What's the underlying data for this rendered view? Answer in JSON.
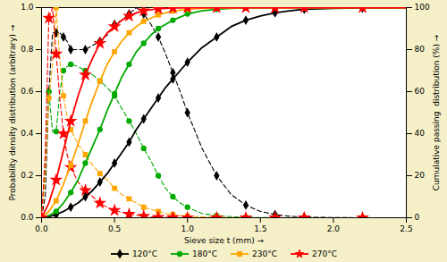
{
  "chart_data": {
    "type": "line",
    "xlabel": "Sieve size t (mm)",
    "ylabel": "Probability density distribution (arbitrary)",
    "y2label": "Cumulative passing  distribution (%)",
    "xlim": [
      0,
      2.5
    ],
    "xticks": [
      {
        "value": 0,
        "label": "0.0"
      },
      0.5,
      {
        "value": 1,
        "label": "1.0"
      },
      1.5,
      {
        "value": 2,
        "label": "2.0"
      },
      2.5
    ],
    "ylim": [
      0,
      1.0
    ],
    "yticks": [
      {
        "value": 0,
        "label": "0.0"
      },
      0.2,
      0.4,
      0.6,
      0.8,
      {
        "value": 1,
        "label": "1.0"
      }
    ],
    "y2lim": [
      0,
      100
    ],
    "y2ticks": [
      0,
      20,
      40,
      60,
      80,
      100
    ],
    "grid": false,
    "legend": "bottom",
    "series": [
      {
        "color": "black",
        "marker": "diamond",
        "line_style": "dashed",
        "x": [
          0.0,
          0.025,
          0.05,
          0.075,
          0.1,
          0.125,
          0.15,
          0.175,
          0.2,
          0.25,
          0.3,
          0.35,
          0.4,
          0.45,
          0.5,
          0.55,
          0.6,
          0.65,
          0.7,
          0.75,
          0.8,
          0.85,
          0.9,
          0.95,
          1.0,
          1.1,
          1.2,
          1.3,
          1.4,
          1.5,
          1.6,
          1.7,
          1.8,
          2.0,
          2.2,
          2.5
        ],
        "values": [
          0,
          0.1,
          0.6,
          0.88,
          0.88,
          0.88,
          0.86,
          0.84,
          0.8,
          0.8,
          0.8,
          0.82,
          0.84,
          0.87,
          0.92,
          0.94,
          0.97,
          1.0,
          0.97,
          0.92,
          0.86,
          0.78,
          0.69,
          0.6,
          0.5,
          0.33,
          0.2,
          0.11,
          0.06,
          0.03,
          0.015,
          0.007,
          0.003,
          0.001,
          0.0,
          0.0
        ]
      },
      {
        "color": "#00aa00",
        "marker": "circle",
        "line_style": "dashed",
        "x": [
          0.0,
          0.025,
          0.05,
          0.075,
          0.1,
          0.125,
          0.15,
          0.175,
          0.2,
          0.25,
          0.3,
          0.35,
          0.4,
          0.45,
          0.5,
          0.55,
          0.6,
          0.65,
          0.7,
          0.75,
          0.8,
          0.85,
          0.9,
          0.95,
          1.0,
          1.1,
          1.2,
          1.3,
          1.4,
          1.5,
          1.6,
          1.7,
          1.8,
          2.0,
          2.2,
          2.5
        ],
        "values": [
          0,
          0.25,
          0.6,
          0.41,
          0.41,
          0.6,
          0.7,
          0.72,
          0.73,
          0.72,
          0.7,
          0.68,
          0.65,
          0.62,
          0.58,
          0.52,
          0.46,
          0.4,
          0.33,
          0.27,
          0.2,
          0.14,
          0.1,
          0.07,
          0.05,
          0.02,
          0.01,
          0.005,
          0.002,
          0.001,
          0.0,
          0.0,
          0.0,
          0.0,
          0.0,
          0.0
        ]
      },
      {
        "color": "orange",
        "marker": "square",
        "line_style": "dashed",
        "x": [
          0.0,
          0.025,
          0.05,
          0.075,
          0.1,
          0.125,
          0.15,
          0.175,
          0.2,
          0.25,
          0.3,
          0.35,
          0.4,
          0.45,
          0.5,
          0.55,
          0.6,
          0.65,
          0.7,
          0.75,
          0.8,
          0.85,
          0.9,
          0.95,
          1.0,
          1.1,
          1.2,
          1.3,
          1.4,
          1.5,
          1.6,
          1.7,
          1.8,
          2.0,
          2.2,
          2.5
        ],
        "values": [
          0,
          0.2,
          0.57,
          0.73,
          1.0,
          0.75,
          0.58,
          0.48,
          0.42,
          0.35,
          0.3,
          0.25,
          0.21,
          0.18,
          0.14,
          0.11,
          0.09,
          0.07,
          0.05,
          0.04,
          0.03,
          0.02,
          0.015,
          0.01,
          0.008,
          0.004,
          0.002,
          0.001,
          0.0,
          0.0,
          0.0,
          0.0,
          0.0,
          0.0,
          0.0,
          0.0
        ]
      },
      {
        "color": "red",
        "marker": "star",
        "line_style": "dashed",
        "x": [
          0.0,
          0.025,
          0.05,
          0.075,
          0.1,
          0.125,
          0.15,
          0.175,
          0.2,
          0.25,
          0.3,
          0.35,
          0.4,
          0.45,
          0.5,
          0.55,
          0.6,
          0.65,
          0.7,
          0.75,
          0.8,
          0.85,
          0.9,
          0.95,
          1.0,
          1.1,
          1.2,
          1.3,
          1.4,
          1.5,
          1.6,
          1.7,
          1.8,
          2.0,
          2.2,
          2.5
        ],
        "values": [
          0,
          0.3,
          0.95,
          1.0,
          0.78,
          0.57,
          0.4,
          0.3,
          0.24,
          0.17,
          0.13,
          0.1,
          0.07,
          0.05,
          0.035,
          0.025,
          0.017,
          0.012,
          0.008,
          0.005,
          0.003,
          0.002,
          0.001,
          0.0,
          0.0,
          0.0,
          0.0,
          0.0,
          0.0,
          0.0,
          0.0,
          0.0,
          0.0,
          0.0,
          0.0,
          0.0
        ]
      },
      {
        "name": "120°C",
        "color": "black",
        "marker": "diamond",
        "line_style": "solid",
        "axis": "y2",
        "x": [
          0.0,
          0.05,
          0.1,
          0.15,
          0.2,
          0.25,
          0.3,
          0.35,
          0.4,
          0.45,
          0.5,
          0.55,
          0.6,
          0.65,
          0.7,
          0.75,
          0.8,
          0.85,
          0.9,
          0.95,
          1.0,
          1.1,
          1.2,
          1.3,
          1.4,
          1.5,
          1.6,
          1.7,
          1.8,
          2.0,
          2.2,
          2.5
        ],
        "values": [
          0,
          0.5,
          1.5,
          3,
          5,
          7,
          10,
          13,
          17,
          21,
          26,
          31,
          36,
          42,
          47,
          52,
          57,
          62,
          66,
          70,
          74,
          81,
          86,
          91,
          94,
          96,
          97.5,
          98.5,
          99.2,
          99.6,
          99.8,
          100
        ]
      },
      {
        "name": "180°C",
        "color": "#00aa00",
        "marker": "circle",
        "line_style": "solid",
        "axis": "y2",
        "x": [
          0.0,
          0.05,
          0.1,
          0.15,
          0.2,
          0.25,
          0.3,
          0.35,
          0.4,
          0.45,
          0.5,
          0.55,
          0.6,
          0.65,
          0.7,
          0.75,
          0.8,
          0.85,
          0.9,
          0.95,
          1.0,
          1.1,
          1.2,
          1.3,
          1.4,
          1.5,
          1.6,
          1.7,
          1.8,
          2.0,
          2.2,
          2.5
        ],
        "values": [
          0,
          1,
          3,
          7,
          12,
          18,
          26,
          34,
          42,
          51,
          59,
          67,
          73,
          79,
          83,
          87,
          90,
          92,
          94,
          95.5,
          97,
          98.5,
          99.2,
          99.6,
          99.8,
          99.9,
          100,
          100,
          100,
          100,
          100,
          100
        ]
      },
      {
        "name": "230°C",
        "color": "orange",
        "marker": "square",
        "line_style": "solid",
        "axis": "y2",
        "x": [
          0.0,
          0.05,
          0.1,
          0.15,
          0.2,
          0.25,
          0.3,
          0.35,
          0.4,
          0.45,
          0.5,
          0.55,
          0.6,
          0.65,
          0.7,
          0.75,
          0.8,
          0.85,
          0.9,
          0.95,
          1.0,
          1.1,
          1.2,
          1.3,
          1.4,
          1.5,
          1.6,
          1.7,
          1.8,
          2.0,
          2.2,
          2.5
        ],
        "values": [
          0,
          3,
          8,
          16,
          25,
          35,
          46,
          56,
          65,
          73,
          79,
          84,
          88,
          91,
          93.5,
          95,
          96.5,
          97.5,
          98.2,
          98.8,
          99.2,
          99.6,
          99.8,
          99.9,
          100,
          100,
          100,
          100,
          100,
          100,
          100,
          100
        ]
      },
      {
        "name": "270°C",
        "color": "red",
        "marker": "star",
        "line_style": "solid",
        "axis": "y2",
        "x": [
          0.0,
          0.05,
          0.1,
          0.15,
          0.2,
          0.25,
          0.3,
          0.35,
          0.4,
          0.45,
          0.5,
          0.55,
          0.6,
          0.65,
          0.7,
          0.75,
          0.8,
          0.85,
          0.9,
          0.95,
          1.0,
          1.1,
          1.2,
          1.3,
          1.4,
          1.5,
          1.6,
          1.7,
          1.8,
          2.0,
          2.2,
          2.5
        ],
        "values": [
          0,
          7,
          18,
          32,
          46,
          58,
          68,
          76,
          83,
          88,
          91,
          94,
          96,
          97.5,
          98.5,
          99,
          99.4,
          99.6,
          99.8,
          99.9,
          100,
          100,
          100,
          100,
          100,
          100,
          100,
          100,
          100,
          100,
          100,
          100
        ]
      }
    ]
  }
}
